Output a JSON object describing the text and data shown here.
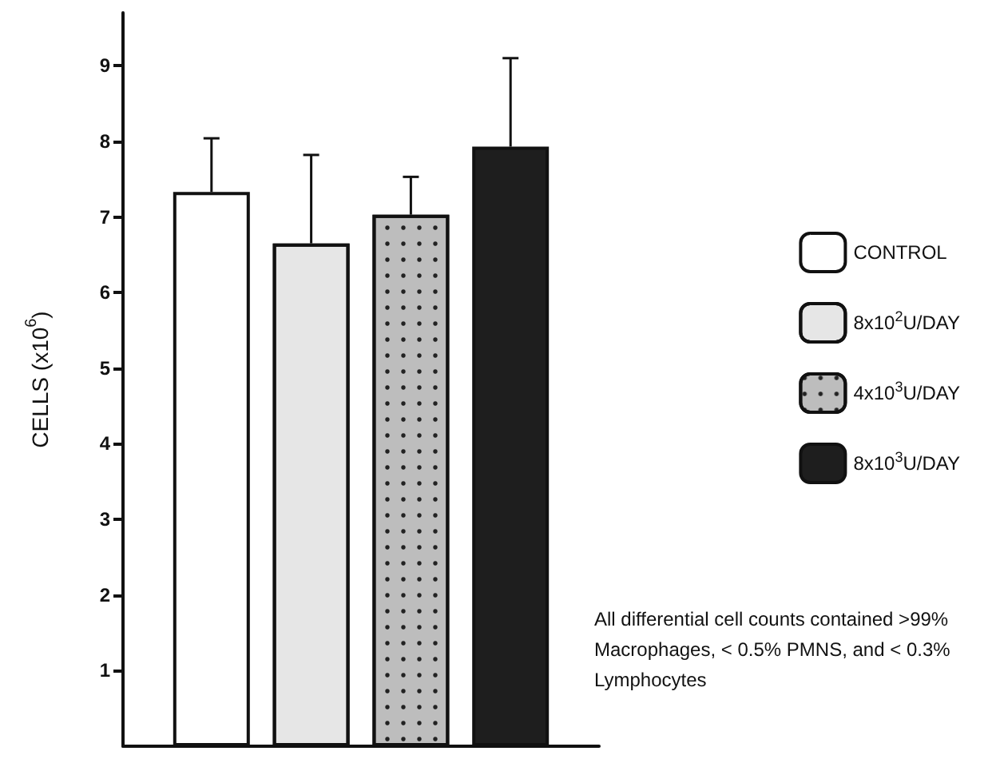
{
  "chart_data": {
    "type": "bar",
    "categories": [
      null
    ],
    "ylabel": "CELLS (x10$^{6}$)",
    "series": [
      {
        "name": "CONTROL",
        "color": "#ffffff",
        "values": [
          7.33
        ],
        "errors": [
          [
            7.33,
            8.04
          ]
        ]
      },
      {
        "name": "8x10$^{2}$U/DAY",
        "color": "#e6e6e6",
        "values": [
          6.65
        ],
        "errors": [
          [
            6.65,
            7.82
          ]
        ]
      },
      {
        "name": "4x10$^{3}$U/DAY",
        "color": "#bdbdbd",
        "values": [
          7.03
        ],
        "errors": [
          [
            7.03,
            7.53
          ]
        ]
      },
      {
        "name": "8x10$^{3}$U/DAY",
        "color": "#1e1e1e",
        "values": [
          7.93
        ],
        "errors": [
          [
            7.93,
            9.1
          ]
        ]
      }
    ],
    "ylim": [
      0,
      9.7
    ],
    "yticks": [
      1,
      2,
      3,
      4,
      5,
      6,
      7,
      8,
      9
    ],
    "grid": false,
    "legend": "right",
    "annotations": [
      "All differential cell counts contained >99% Macrophages, < 0.5% PMNS, and < 0.3% Lymphocytes"
    ]
  }
}
